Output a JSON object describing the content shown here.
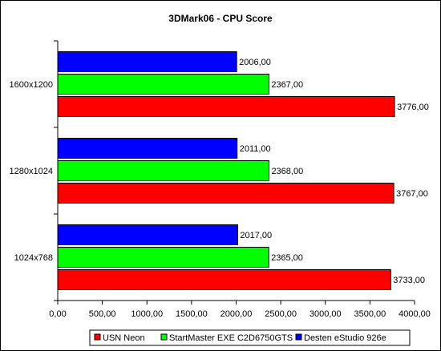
{
  "chart_data": {
    "type": "bar",
    "orientation": "horizontal",
    "title": "3DMark06 - CPU Score",
    "xlabel": "",
    "ylabel": "",
    "xlim": [
      0,
      4000
    ],
    "x_ticks": [
      "0,00",
      "500,00",
      "1000,00",
      "1500,00",
      "2000,00",
      "2500,00",
      "3000,00",
      "3500,00",
      "4000,00"
    ],
    "grid": false,
    "legend_position": "bottom",
    "categories": [
      "1600x1200",
      "1280x1024",
      "1024x768"
    ],
    "series": [
      {
        "name": "Desten eStudio 926e",
        "color": "#0000ff",
        "values": [
          2006,
          2011,
          2017
        ],
        "labels": [
          "2006,00",
          "2011,00",
          "2017,00"
        ]
      },
      {
        "name": "StartMaster EXE C2D6750GTS",
        "color": "#00ff00",
        "values": [
          2367,
          2368,
          2365
        ],
        "labels": [
          "2367,00",
          "2368,00",
          "2365,00"
        ]
      },
      {
        "name": "USN Neon",
        "color": "#ff0000",
        "values": [
          3776,
          3767,
          3733
        ],
        "labels": [
          "3776,00",
          "3767,00",
          "3733,00"
        ]
      }
    ],
    "legend_order": [
      "USN Neon",
      "StartMaster EXE C2D6750GTS",
      "Desten eStudio 926e"
    ]
  }
}
